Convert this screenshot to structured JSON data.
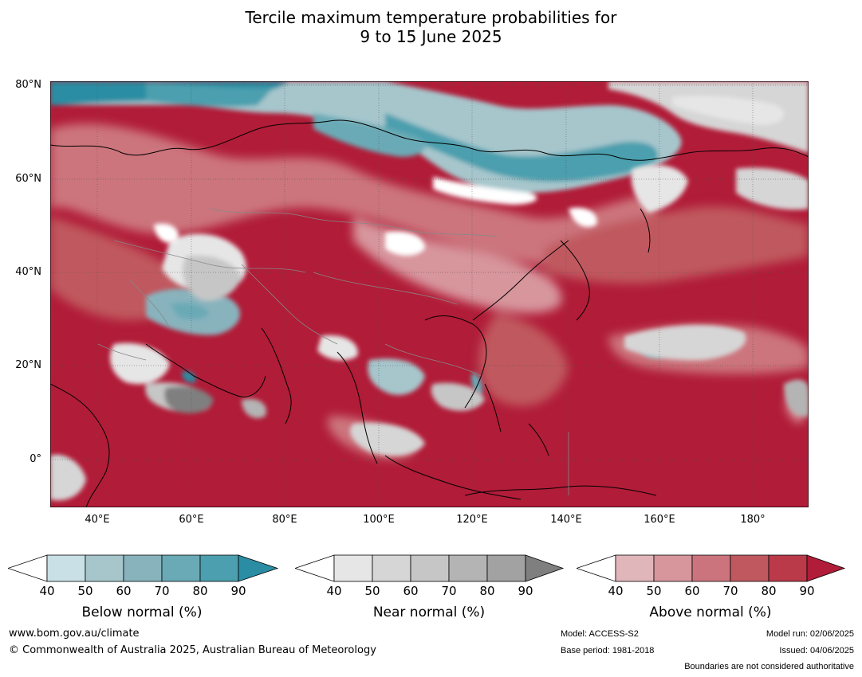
{
  "title_line1": "Tercile maximum temperature probabilities for",
  "title_line2": "9 to 15 June 2025",
  "lat_ticks": [
    "80°N",
    "60°N",
    "40°N",
    "20°N",
    "0°"
  ],
  "lon_ticks": [
    "40°E",
    "60°E",
    "80°E",
    "100°E",
    "120°E",
    "140°E",
    "160°E",
    "180°"
  ],
  "colorbars": [
    {
      "label": "Below normal (%)",
      "ticks": [
        "40",
        "50",
        "60",
        "70",
        "80",
        "90"
      ],
      "colors": [
        "#ffffff",
        "#c8e0e6",
        "#a6c6cc",
        "#88b3bd",
        "#6aaab6",
        "#4c9fae",
        "#2a8da3"
      ]
    },
    {
      "label": "Near normal (%)",
      "ticks": [
        "40",
        "50",
        "60",
        "70",
        "80",
        "90"
      ],
      "colors": [
        "#ffffff",
        "#e6e6e6",
        "#d6d6d6",
        "#c6c6c6",
        "#b4b4b4",
        "#a2a2a2",
        "#7f7f7f"
      ]
    },
    {
      "label": "Above normal (%)",
      "ticks": [
        "40",
        "50",
        "60",
        "70",
        "80",
        "90"
      ],
      "colors": [
        "#ffffff",
        "#e1b6bb",
        "#d7959c",
        "#cc747d",
        "#c0585f",
        "#bb3a4a",
        "#b11c38"
      ]
    }
  ],
  "footer": {
    "website": "www.bom.gov.au/climate",
    "copyright": "© Commonwealth of Australia 2025, Australian Bureau of Meteorology",
    "model": "Model: ACCESS-S2",
    "base_period": "Base period: 1981-2018",
    "model_run": "Model run: 02/06/2025",
    "issued": "Issued: 04/06/2025",
    "disclaimer": "Boundaries are not considered authoritative"
  }
}
